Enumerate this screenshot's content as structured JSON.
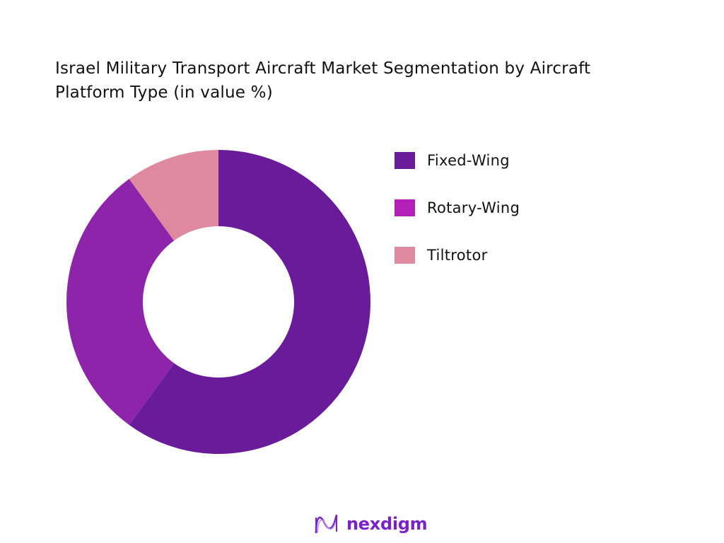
{
  "chart_data": {
    "type": "pie",
    "donut": true,
    "title": "Israel Military Transport Aircraft Market Segmentation by Aircraft Platform Type (in value %)",
    "categories": [
      "Fixed-Wing",
      "Rotary-Wing",
      "Tiltrotor"
    ],
    "values": [
      60,
      30,
      10
    ],
    "unit": "%",
    "slice_colors": [
      "#6a1b9a",
      "#8e24aa",
      "#de89a0"
    ],
    "legend_colors": [
      "#6a1b9a",
      "#b41fb8",
      "#de89a0"
    ],
    "legend_position": "right",
    "start_angle": "top, clockwise"
  },
  "brand": {
    "name": "nexdigm",
    "color": "#7a22c8"
  }
}
